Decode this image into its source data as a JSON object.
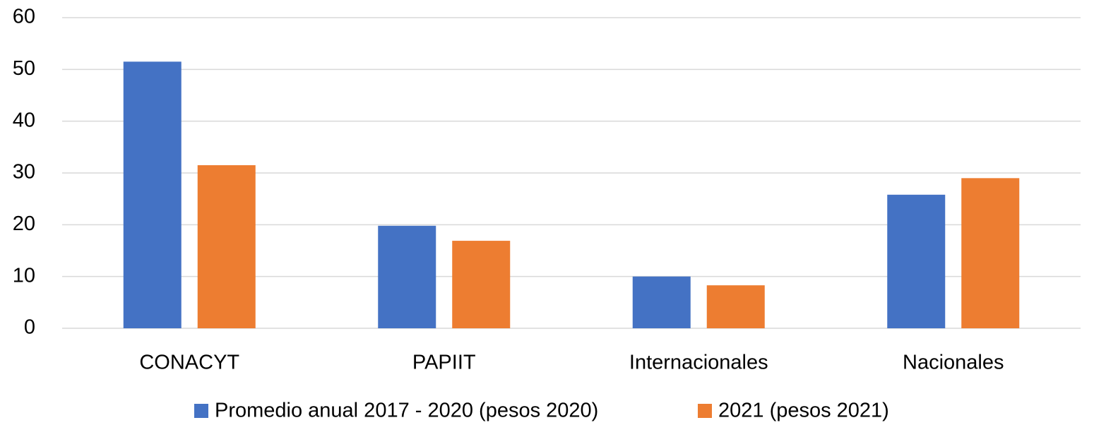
{
  "chart_data": {
    "type": "bar",
    "categories": [
      "CONACYT",
      "PAPIIT",
      "Internacionales",
      "Nacionales"
    ],
    "series": [
      {
        "name": "Promedio anual 2017 - 2020 (pesos 2020)",
        "color": "#4472c4",
        "values": [
          51.5,
          19.8,
          10,
          25.8
        ]
      },
      {
        "name": "2021 (pesos 2021)",
        "color": "#ed7d31",
        "values": [
          31.5,
          16.9,
          8.3,
          29
        ]
      }
    ],
    "ylim": [
      0,
      60
    ],
    "yticks": [
      0,
      10,
      20,
      30,
      40,
      50,
      60
    ],
    "grid": true,
    "legend": "bottom"
  }
}
